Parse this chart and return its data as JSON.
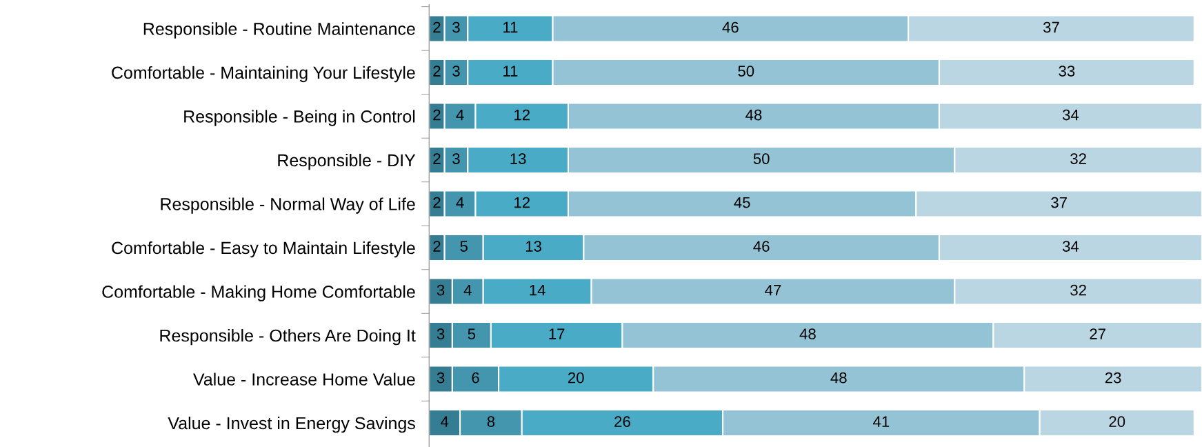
{
  "chart_data": {
    "type": "bar",
    "orientation": "horizontal",
    "stacked": true,
    "data_labels": true,
    "grid": false,
    "legend": false,
    "categories": [
      "Responsible - Routine Maintenance",
      "Comfortable - Maintaining Your Lifestyle",
      "Responsible - Being in Control",
      "Responsible - DIY",
      "Responsible - Normal Way of Life",
      "Comfortable - Easy to Maintain Lifestyle",
      "Comfortable - Making Home Comfortable",
      "Responsible - Others Are Doing It",
      "Value - Increase Home Value",
      "Value - Invest in Energy Savings"
    ],
    "series": [
      {
        "color": "#347d92",
        "values": [
          2,
          2,
          2,
          2,
          2,
          2,
          3,
          3,
          3,
          4
        ]
      },
      {
        "color": "#4496ae",
        "values": [
          3,
          3,
          4,
          3,
          4,
          5,
          4,
          5,
          6,
          8
        ]
      },
      {
        "color": "#4aabc6",
        "values": [
          11,
          11,
          12,
          13,
          12,
          13,
          14,
          17,
          20,
          26
        ]
      },
      {
        "color": "#93c3d5",
        "values": [
          46,
          50,
          48,
          50,
          45,
          46,
          47,
          48,
          48,
          41
        ]
      },
      {
        "color": "#b9d6e2",
        "values": [
          37,
          33,
          34,
          32,
          37,
          34,
          32,
          27,
          23,
          20
        ]
      }
    ]
  }
}
